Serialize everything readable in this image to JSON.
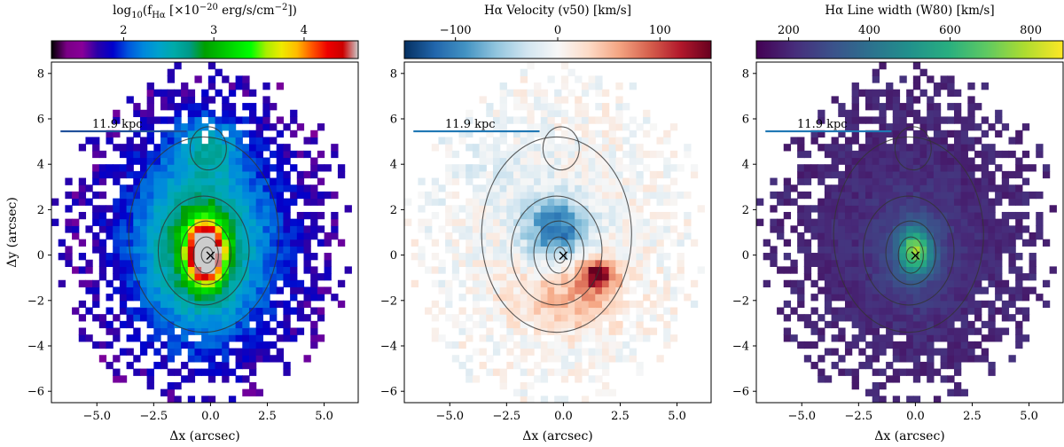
{
  "chart_data": [
    {
      "type": "heatmap",
      "panel": "flux",
      "colormap": "nipy_spectral",
      "title": "log10(f_Hα [×10^-20 erg/s/cm^-2])",
      "title_parts": {
        "main": "log",
        "sub": "10",
        "open": "(f",
        "fsub": "Hα",
        "bracket": " [×10",
        "exp": "−20",
        "unit": " erg/s/cm",
        "uexp": "−2",
        "close": "])"
      },
      "colorbar_range": [
        1.2,
        4.6
      ],
      "colorbar_ticks": [
        2,
        3,
        4
      ],
      "colorbar_tick_labels": [
        "2",
        "3",
        "4"
      ],
      "xlabel": "Δx (arcsec)",
      "ylabel": "Δy (arcsec)",
      "xlim": [
        -7,
        6.5
      ],
      "ylim": [
        -6.5,
        8.5
      ],
      "xticks": [
        -5.0,
        -2.5,
        0.0,
        2.5,
        5.0
      ],
      "xtick_labels": [
        "−5.0",
        "−2.5",
        "0.0",
        "2.5",
        "5.0"
      ],
      "yticks": [
        -6,
        -4,
        -2,
        0,
        2,
        4,
        6,
        8
      ],
      "ytick_labels": [
        "−6",
        "−4",
        "−2",
        "0",
        "2",
        "4",
        "6",
        "8"
      ],
      "scalebar_label": "11.9 kpc",
      "center_marker": "×"
    },
    {
      "type": "heatmap",
      "panel": "velocity",
      "colormap": "RdBu_r",
      "title": "Hα Velocity (v50) [km/s]",
      "colorbar_range": [
        -150,
        150
      ],
      "colorbar_ticks": [
        -100,
        0,
        100
      ],
      "colorbar_tick_labels": [
        "−100",
        "0",
        "100"
      ],
      "xlabel": "Δx (arcsec)",
      "xlim": [
        -7,
        6.5
      ],
      "ylim": [
        -6.5,
        8.5
      ],
      "xticks": [
        -5.0,
        -2.5,
        0.0,
        2.5,
        5.0
      ],
      "xtick_labels": [
        "−5.0",
        "−2.5",
        "0.0",
        "2.5",
        "5.0"
      ],
      "yticks": [
        -6,
        -4,
        -2,
        0,
        2,
        4,
        6,
        8
      ],
      "ytick_labels": [
        "−6",
        "−4",
        "−2",
        "0",
        "2",
        "4",
        "6",
        "8"
      ],
      "scalebar_label": "11.9 kpc",
      "center_marker": "×"
    },
    {
      "type": "heatmap",
      "panel": "linewidth",
      "colormap": "viridis",
      "title": "Hα Line width (W80) [km/s]",
      "colorbar_range": [
        120,
        880
      ],
      "colorbar_ticks": [
        200,
        400,
        600,
        800
      ],
      "colorbar_tick_labels": [
        "200",
        "400",
        "600",
        "800"
      ],
      "xlabel": "Δx (arcsec)",
      "xlim": [
        -7,
        6.5
      ],
      "ylim": [
        -6.5,
        8.5
      ],
      "xticks": [
        -5.0,
        -2.5,
        0.0,
        2.5,
        5.0
      ],
      "xtick_labels": [
        "−5.0",
        "−2.5",
        "0.0",
        "2.5",
        "5.0"
      ],
      "yticks": [
        -6,
        -4,
        -2,
        0,
        2,
        4,
        6,
        8
      ],
      "ytick_labels": [
        "−6",
        "−4",
        "−2",
        "0",
        "2",
        "4",
        "6",
        "8"
      ],
      "scalebar_label": "11.9 kpc",
      "center_marker": "×"
    }
  ]
}
